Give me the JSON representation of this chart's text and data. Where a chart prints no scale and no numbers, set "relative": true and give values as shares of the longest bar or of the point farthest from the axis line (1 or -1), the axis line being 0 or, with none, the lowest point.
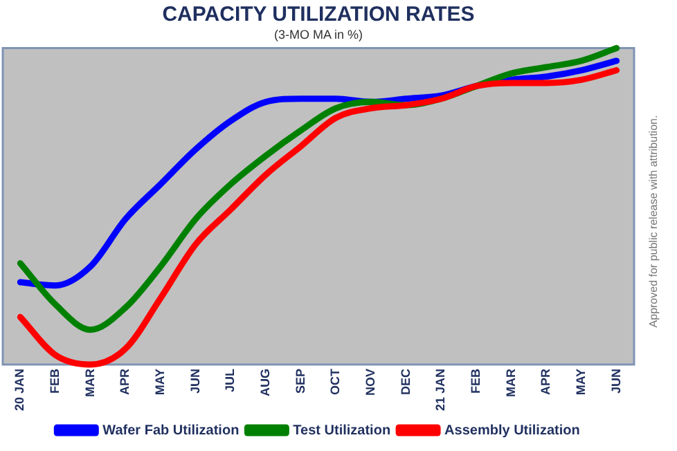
{
  "chart_data": {
    "type": "line",
    "title": "CAPACITY UTILIZATION RATES",
    "subtitle": "(3-MO MA in %)",
    "relative": true,
    "legend": "bottom",
    "grid": false,
    "marker": "none",
    "line_style": "solid",
    "categories": [
      "20 JAN",
      "FEB",
      "MAR",
      "APR",
      "MAY",
      "JUN",
      "JUL",
      "AUG",
      "SEP",
      "OCT",
      "NOV",
      "DEC",
      "21 JAN",
      "FEB",
      "MAR",
      "APR",
      "MAY",
      "JUN"
    ],
    "series": [
      {
        "name": "Wafer Fab Utilization",
        "color": "#0000ff",
        "values": [
          0.26,
          0.25,
          0.31,
          0.46,
          0.57,
          0.68,
          0.77,
          0.83,
          0.84,
          0.84,
          0.83,
          0.84,
          0.85,
          0.88,
          0.9,
          0.91,
          0.93,
          0.96
        ]
      },
      {
        "name": "Test Utilization",
        "color": "#008000",
        "values": [
          0.32,
          0.19,
          0.11,
          0.18,
          0.31,
          0.46,
          0.57,
          0.66,
          0.74,
          0.81,
          0.83,
          0.82,
          0.84,
          0.88,
          0.92,
          0.94,
          0.96,
          1
        ]
      },
      {
        "name": "Assembly Utilization",
        "color": "#ff0000",
        "values": [
          0.15,
          0.03,
          0,
          0.05,
          0.21,
          0.38,
          0.49,
          0.6,
          0.69,
          0.78,
          0.81,
          0.82,
          0.84,
          0.88,
          0.89,
          0.89,
          0.9,
          0.93
        ]
      }
    ],
    "annotations": [
      "Approved for public release with attribution."
    ]
  }
}
